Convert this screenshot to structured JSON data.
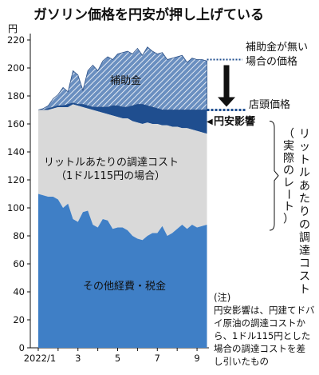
{
  "chart_data": {
    "type": "area",
    "title": "ガソリン価格を円安が押し上げている",
    "ylabel": "円",
    "ylim": [
      0,
      220
    ],
    "yticks": [
      0,
      20,
      40,
      60,
      80,
      100,
      120,
      140,
      160,
      180,
      200,
      220
    ],
    "grid": false,
    "xlim": [
      0.6,
      9.6
    ],
    "xtick_labels": [
      {
        "x": 1,
        "label": "2022/1"
      },
      {
        "x": 3,
        "label": "3"
      },
      {
        "x": 5,
        "label": "5"
      },
      {
        "x": 7,
        "label": "7"
      },
      {
        "x": 9,
        "label": "9"
      }
    ],
    "x": [
      1.0,
      1.25,
      1.5,
      1.75,
      2.0,
      2.25,
      2.5,
      2.75,
      3.0,
      3.25,
      3.5,
      3.75,
      4.0,
      4.25,
      4.5,
      4.75,
      5.0,
      5.25,
      5.5,
      5.75,
      6.0,
      6.25,
      6.5,
      6.75,
      7.0,
      7.25,
      7.5,
      7.75,
      8.0,
      8.25,
      8.5,
      8.75,
      9.0,
      9.25,
      9.5
    ],
    "series": [
      {
        "name": "その他経費・税金",
        "color": "#3f7fc6",
        "values": [
          110,
          109,
          108,
          108,
          106,
          100,
          103,
          92,
          90,
          97,
          98,
          88,
          86,
          92,
          91,
          85,
          86,
          86,
          84,
          80,
          78,
          77,
          80,
          82,
          82,
          87,
          80,
          82,
          85,
          88,
          85,
          88,
          86,
          87,
          88
        ]
      },
      {
        "name": "リットルあたりの調達コスト（1ドル115円の場合）",
        "color": "#d9d9d9",
        "values": [
          170,
          170,
          170,
          171,
          172,
          172,
          172,
          174,
          173,
          172,
          171,
          170,
          169,
          168,
          167,
          166,
          165,
          164,
          164,
          162,
          161,
          160,
          161,
          160,
          160,
          159,
          159,
          158,
          158,
          157,
          157,
          156,
          155,
          154,
          153
        ]
      },
      {
        "name": "円安影響",
        "color": "#1f4e8f",
        "values": [
          170,
          170,
          171,
          172,
          173,
          173,
          174,
          175,
          174,
          174,
          173,
          172,
          172,
          172,
          172,
          173,
          173,
          172,
          172,
          173,
          174,
          174,
          173,
          172,
          171,
          170,
          170,
          170,
          170,
          170,
          170,
          170,
          170,
          170,
          170
        ]
      },
      {
        "name": "補助金",
        "color": "#6a8fc0",
        "values": [
          170,
          171,
          173,
          178,
          181,
          186,
          183,
          198,
          195,
          184,
          198,
          202,
          198,
          205,
          208,
          206,
          210,
          211,
          212,
          210,
          214,
          209,
          215,
          212,
          210,
          211,
          206,
          207,
          208,
          209,
          204,
          207,
          206,
          206,
          205
        ]
      }
    ],
    "annotations": [
      {
        "text": "補助金",
        "ref": "補助金"
      },
      {
        "text": "補助金が無い場合の価格",
        "value": 206
      },
      {
        "text": "店頭価格",
        "value": 170
      },
      {
        "text": "円安影響"
      },
      {
        "text": "リットルあたりの調達コスト（実際のレート）"
      },
      {
        "text": "リットルあたりの調達コスト（1ドル115円の場合）"
      },
      {
        "text": "その他経費・税金"
      }
    ]
  },
  "labels": {
    "title": "ガソリン価格を円安が押し上げている",
    "unit": "円",
    "subsidy": "補助金",
    "no_subsidy_line1": "補助金が無い",
    "no_subsidy_line2": "場合の価格",
    "pump_price": "店頭価格",
    "yen_effect": "円安影響",
    "yen_effect_marker": "◀",
    "cost_115_line1": "リットルあたりの調達コスト",
    "cost_115_line2": "（1ドル115円の場合）",
    "cost_actual_vertical": [
      "リ",
      "ッ",
      "ト",
      "ル",
      "あ",
      "た",
      "り",
      "の",
      "調",
      "達",
      "コ",
      "ス",
      "ト"
    ],
    "cost_actual_paren": [
      "（",
      "実",
      "際",
      "の",
      "レ",
      "ー",
      "ト",
      "）"
    ],
    "other_costs": "その他経費・税金",
    "note_head": "(注)",
    "note_lines": [
      "円安影響は、円建てドバ",
      "イ原油の調達コストか",
      "ら、1ドル115円とした",
      "場合の調達コストを差",
      "し引いたもの"
    ]
  }
}
